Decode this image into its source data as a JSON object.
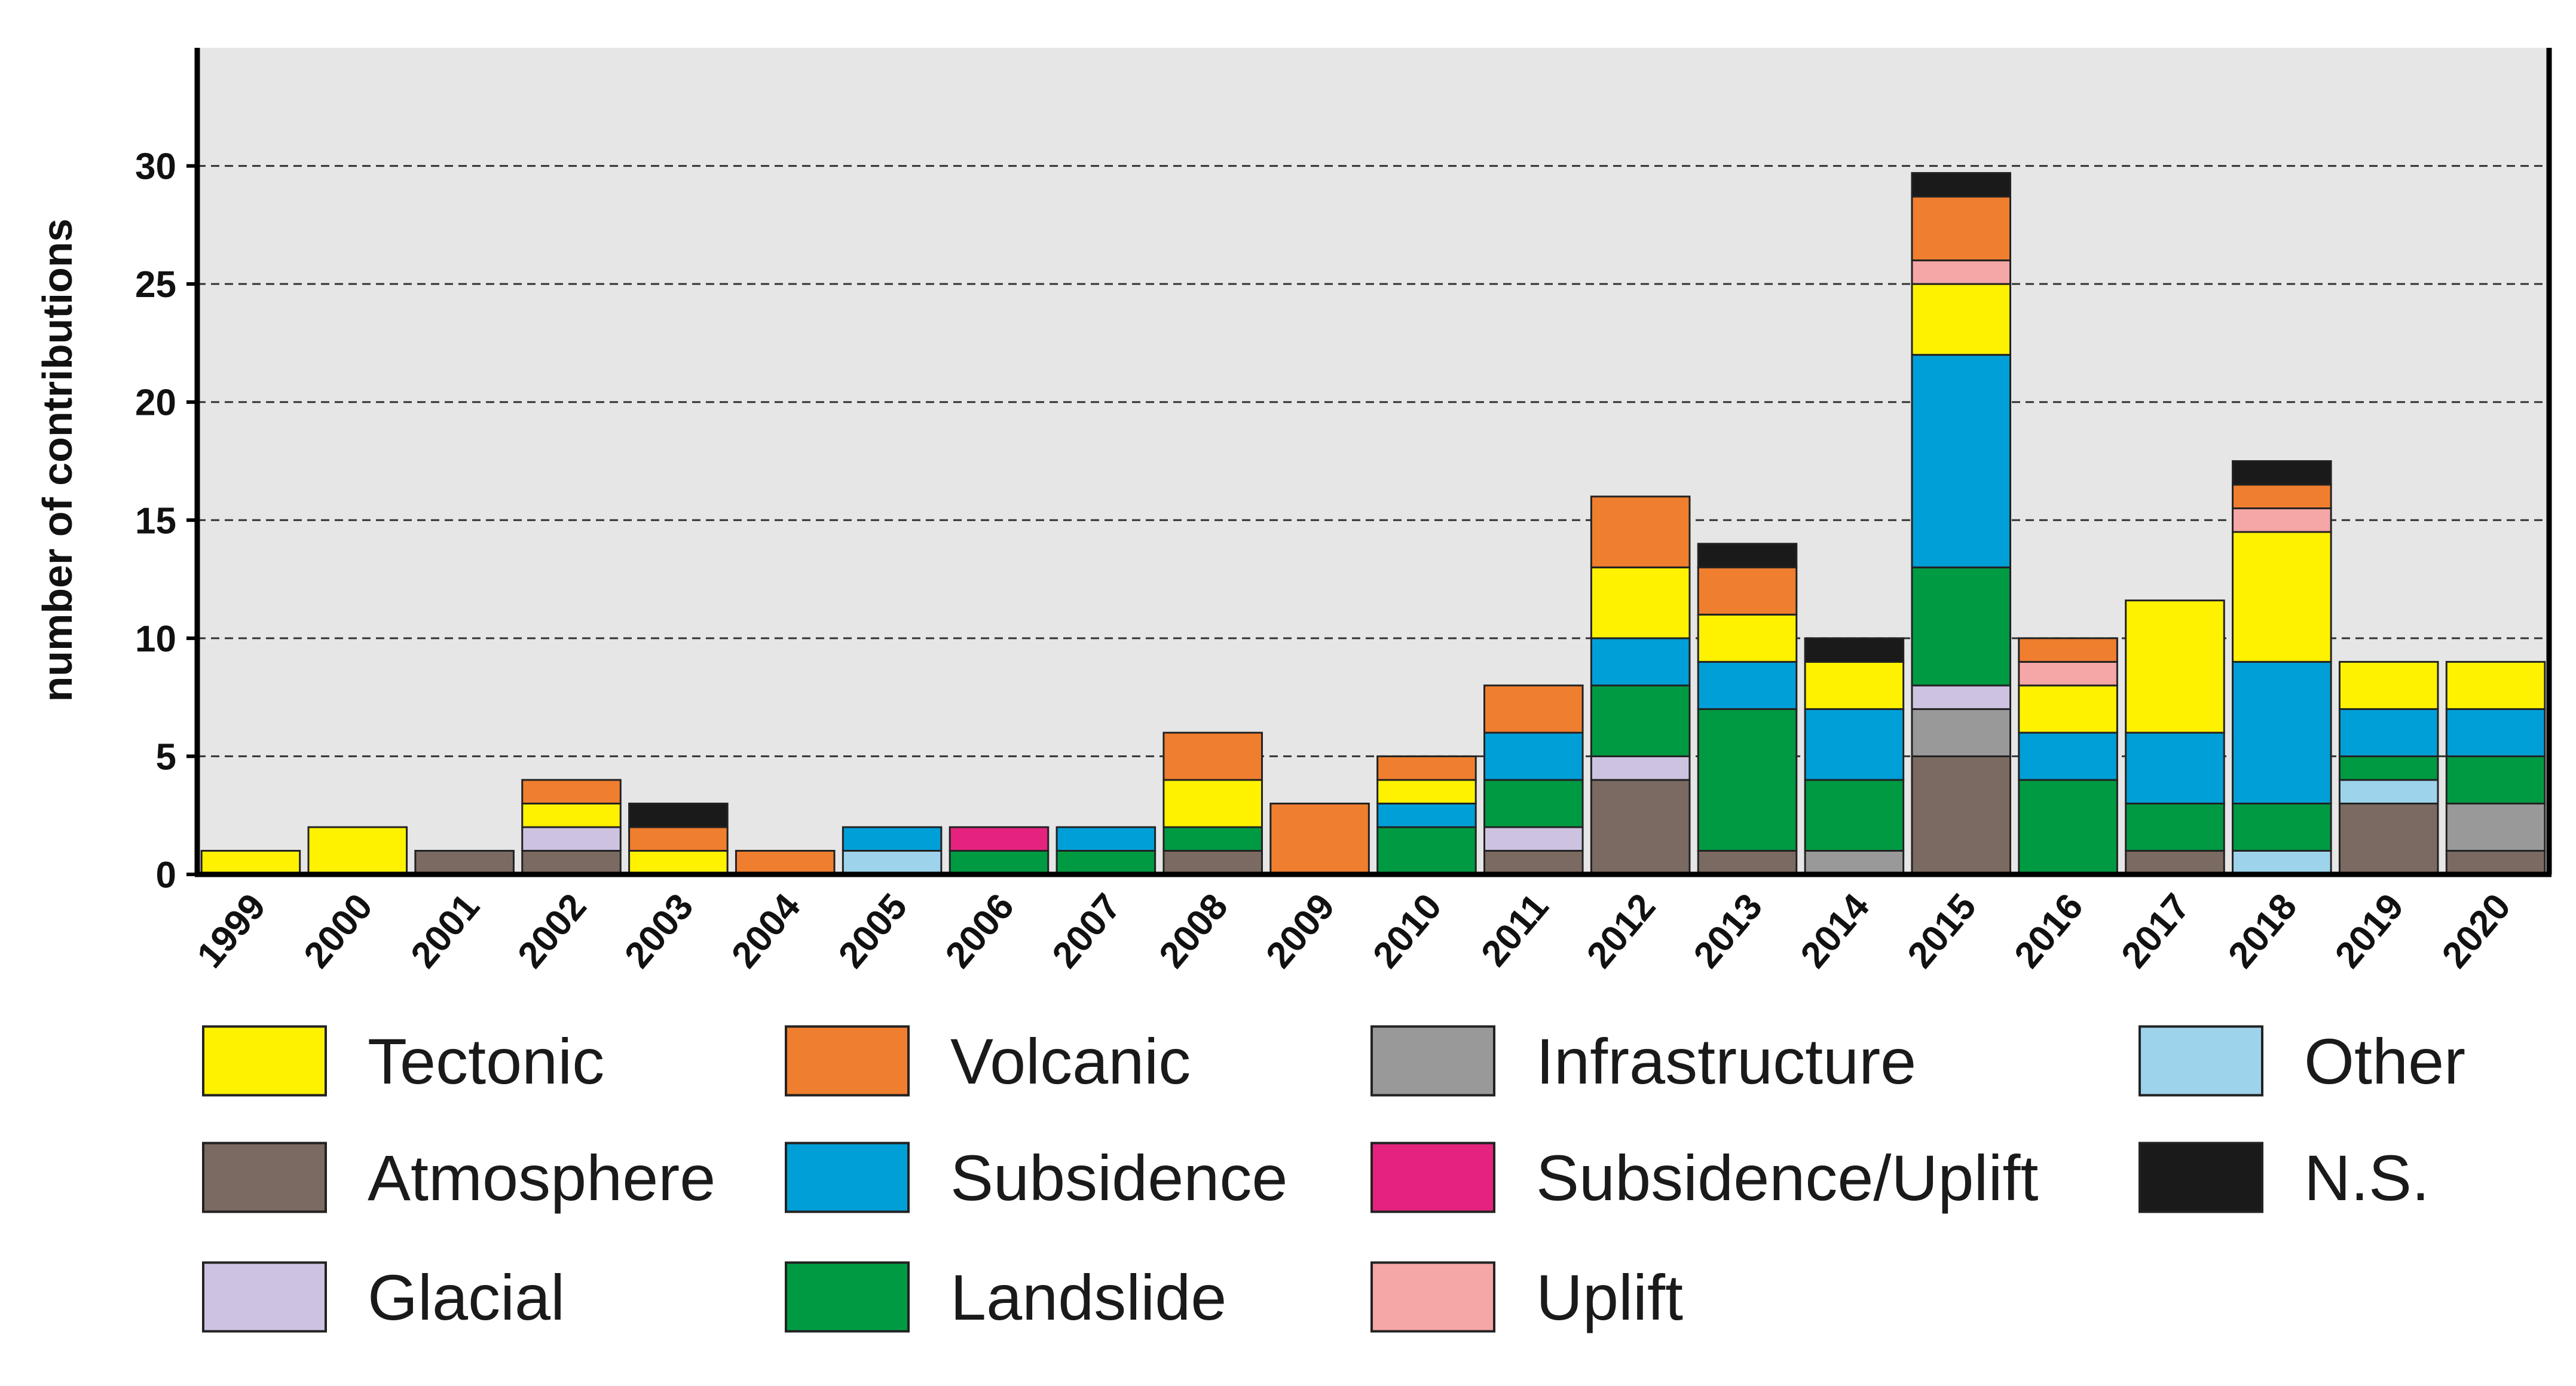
{
  "chart_data": {
    "type": "bar",
    "stacked": true,
    "title": "",
    "xlabel": "",
    "ylabel": "number of contributions",
    "ylim": [
      0,
      35
    ],
    "yticks": [
      0,
      5,
      10,
      15,
      20,
      25,
      30
    ],
    "grid": "horizontal dashed",
    "legend_position": "bottom",
    "categories": [
      "1999",
      "2000",
      "2001",
      "2002",
      "2003",
      "2004",
      "2005",
      "2006",
      "2007",
      "2008",
      "2009",
      "2010",
      "2011",
      "2012",
      "2013",
      "2014",
      "2015",
      "2016",
      "2017",
      "2018",
      "2019",
      "2020"
    ],
    "series": [
      {
        "name": "Atmosphere",
        "color": "#7b6a61",
        "values": [
          0,
          0,
          1,
          1,
          0,
          0,
          0,
          0,
          0,
          1,
          0,
          0,
          1,
          4,
          1,
          0,
          5,
          0,
          1,
          0,
          3,
          1
        ]
      },
      {
        "name": "Infrastructure",
        "color": "#999999",
        "values": [
          0,
          0,
          0,
          0,
          0,
          0,
          0,
          0,
          0,
          0,
          0,
          0,
          0,
          0,
          0,
          1,
          2,
          0,
          0,
          0,
          0,
          2
        ]
      },
      {
        "name": "Glacial",
        "color": "#cdc3e1",
        "values": [
          0,
          0,
          0,
          1,
          0,
          0,
          0,
          0,
          0,
          0,
          0,
          0,
          1,
          1,
          0,
          0,
          1,
          0,
          0,
          0,
          0,
          0
        ]
      },
      {
        "name": "Other",
        "color": "#9ed3ec",
        "values": [
          0,
          0,
          0,
          0,
          0,
          0,
          1,
          0,
          0,
          0,
          0,
          0,
          0,
          0,
          0,
          0,
          0,
          0,
          0,
          1,
          1,
          0
        ]
      },
      {
        "name": "Landslide",
        "color": "#009a43",
        "values": [
          0,
          0,
          0,
          0,
          0,
          0,
          0,
          1,
          1,
          1,
          0,
          2,
          2,
          3,
          6,
          3,
          5,
          4,
          2,
          2,
          1,
          2
        ]
      },
      {
        "name": "Subsidence",
        "color": "#009fd8",
        "values": [
          0,
          0,
          0,
          0,
          0,
          0,
          1,
          0,
          1,
          0,
          0,
          1,
          2,
          2,
          2,
          3,
          9,
          2,
          3,
          6,
          2,
          2
        ]
      },
      {
        "name": "Subsidence/Uplift",
        "color": "#e5237e",
        "values": [
          0,
          0,
          0,
          0,
          0,
          0,
          0,
          1,
          0,
          0,
          0,
          0,
          0,
          0,
          0,
          0,
          0,
          0,
          0,
          0,
          0,
          0
        ]
      },
      {
        "name": "Tectonic",
        "color": "#fff200",
        "values": [
          1,
          2,
          0,
          1,
          1,
          0,
          0,
          0,
          0,
          2,
          0,
          1,
          0,
          3,
          2,
          2,
          3,
          2,
          5.6,
          5.5,
          2,
          2
        ]
      },
      {
        "name": "Uplift",
        "color": "#f5a6a6",
        "values": [
          0,
          0,
          0,
          0,
          0,
          0,
          0,
          0,
          0,
          0,
          0,
          0,
          0,
          0,
          0,
          0,
          1,
          1,
          0,
          1,
          0,
          0
        ]
      },
      {
        "name": "Volcanic",
        "color": "#f07e2f",
        "values": [
          0,
          0,
          0,
          1,
          1,
          1,
          0,
          0,
          0,
          2,
          3,
          1,
          2,
          3,
          2,
          0,
          2.7,
          1,
          0,
          1,
          0,
          0
        ]
      },
      {
        "name": "N.S.",
        "color": "#1a1a1a",
        "values": [
          0,
          0,
          0,
          0,
          1,
          0,
          0,
          0,
          0,
          0,
          0,
          0,
          0,
          0,
          1,
          1,
          1,
          0,
          0,
          1,
          0,
          0
        ]
      }
    ],
    "legend": [
      {
        "label": "Tectonic",
        "color": "#fff200"
      },
      {
        "label": "Volcanic",
        "color": "#f07e2f"
      },
      {
        "label": "Infrastructure",
        "color": "#999999"
      },
      {
        "label": "Other",
        "color": "#9ed3ec"
      },
      {
        "label": "Atmosphere",
        "color": "#7b6a61"
      },
      {
        "label": "Subsidence",
        "color": "#009fd8"
      },
      {
        "label": "Subsidence/Uplift",
        "color": "#e5237e"
      },
      {
        "label": "N.S.",
        "color": "#1a1a1a"
      },
      {
        "label": "Glacial",
        "color": "#cdc3e1"
      },
      {
        "label": "Landslide",
        "color": "#009a43"
      },
      {
        "label": "Uplift",
        "color": "#f5a6a6"
      }
    ]
  }
}
